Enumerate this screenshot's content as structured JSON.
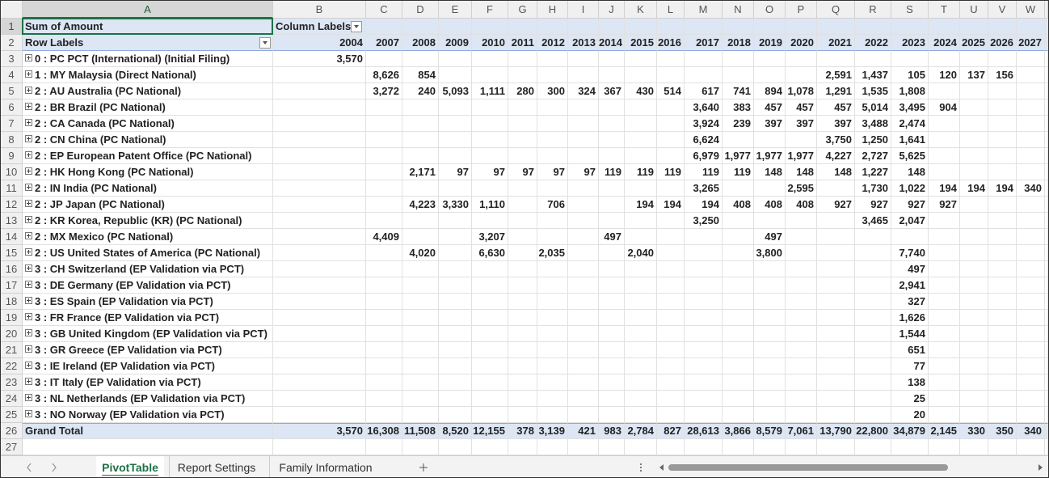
{
  "headers": {
    "column_letters": [
      "A",
      "B",
      "C",
      "D",
      "E",
      "F",
      "G",
      "H",
      "I",
      "J",
      "K",
      "L",
      "M",
      "N",
      "O",
      "P",
      "Q",
      "R",
      "S",
      "T",
      "U",
      "V",
      "W"
    ],
    "row_numbers": [
      1,
      2,
      3,
      4,
      5,
      6,
      7,
      8,
      9,
      10,
      11,
      12,
      13,
      14,
      15,
      16,
      17,
      18,
      19,
      20,
      21,
      22,
      23,
      24,
      25,
      26,
      27
    ]
  },
  "pivot": {
    "data_field": "Sum of Amount",
    "column_labels_caption": "Column Labels",
    "row_labels_caption": "Row Labels",
    "years": [
      2004,
      2007,
      2008,
      2009,
      2010,
      2011,
      2012,
      2013,
      2014,
      2015,
      2016,
      2017,
      2018,
      2019,
      2020,
      2021,
      2022,
      2023,
      2024,
      2025,
      2026,
      2027
    ],
    "rows": [
      {
        "label": "0 : PC PCT (International) (Initial Filing)",
        "values": [
          "3,570",
          null,
          null,
          null,
          null,
          null,
          null,
          null,
          null,
          null,
          null,
          null,
          null,
          null,
          null,
          null,
          null,
          null,
          null,
          null,
          null,
          null
        ]
      },
      {
        "label": "1 : MY Malaysia (Direct National)",
        "values": [
          null,
          "8,626",
          "854",
          null,
          null,
          null,
          null,
          null,
          null,
          null,
          null,
          null,
          null,
          null,
          null,
          "2,591",
          "1,437",
          "105",
          "120",
          "137",
          "156",
          null
        ]
      },
      {
        "label": "2 : AU Australia (PC National)",
        "values": [
          null,
          "3,272",
          "240",
          "5,093",
          "1,111",
          "280",
          "300",
          "324",
          "367",
          "430",
          "514",
          "617",
          "741",
          "894",
          "1,078",
          "1,291",
          "1,535",
          "1,808",
          null,
          null,
          null,
          null
        ]
      },
      {
        "label": "2 : BR Brazil (PC National)",
        "values": [
          null,
          null,
          null,
          null,
          null,
          null,
          null,
          null,
          null,
          null,
          null,
          "3,640",
          "383",
          "457",
          "457",
          "457",
          "5,014",
          "3,495",
          "904",
          null,
          null,
          null
        ]
      },
      {
        "label": "2 : CA Canada (PC National)",
        "values": [
          null,
          null,
          null,
          null,
          null,
          null,
          null,
          null,
          null,
          null,
          null,
          "3,924",
          "239",
          "397",
          "397",
          "397",
          "3,488",
          "2,474",
          null,
          null,
          null,
          null
        ]
      },
      {
        "label": "2 : CN China (PC National)",
        "values": [
          null,
          null,
          null,
          null,
          null,
          null,
          null,
          null,
          null,
          null,
          null,
          "6,624",
          null,
          null,
          null,
          "3,750",
          "1,250",
          "1,641",
          null,
          null,
          null,
          null
        ]
      },
      {
        "label": "2 : EP European Patent Office (PC National)",
        "values": [
          null,
          null,
          null,
          null,
          null,
          null,
          null,
          null,
          null,
          null,
          null,
          "6,979",
          "1,977",
          "1,977",
          "1,977",
          "4,227",
          "2,727",
          "5,625",
          null,
          null,
          null,
          null
        ]
      },
      {
        "label": "2 : HK Hong Kong (PC National)",
        "values": [
          null,
          null,
          "2,171",
          "97",
          "97",
          "97",
          "97",
          "97",
          "119",
          "119",
          "119",
          "119",
          "119",
          "148",
          "148",
          "148",
          "1,227",
          "148",
          null,
          null,
          null,
          null
        ]
      },
      {
        "label": "2 : IN India (PC National)",
        "values": [
          null,
          null,
          null,
          null,
          null,
          null,
          null,
          null,
          null,
          null,
          null,
          "3,265",
          null,
          null,
          "2,595",
          null,
          "1,730",
          "1,022",
          "194",
          "194",
          "194",
          "340"
        ]
      },
      {
        "label": "2 : JP Japan (PC National)",
        "values": [
          null,
          null,
          "4,223",
          "3,330",
          "1,110",
          null,
          "706",
          null,
          null,
          "194",
          "194",
          "194",
          "408",
          "408",
          "408",
          "927",
          "927",
          "927",
          "927",
          null,
          null,
          null
        ]
      },
      {
        "label": "2 : KR Korea, Republic (KR) (PC National)",
        "values": [
          null,
          null,
          null,
          null,
          null,
          null,
          null,
          null,
          null,
          null,
          null,
          "3,250",
          null,
          null,
          null,
          null,
          "3,465",
          "2,047",
          null,
          null,
          null,
          null
        ]
      },
      {
        "label": "2 : MX Mexico (PC National)",
        "values": [
          null,
          "4,409",
          null,
          null,
          "3,207",
          null,
          null,
          null,
          "497",
          null,
          null,
          null,
          null,
          "497",
          null,
          null,
          null,
          null,
          null,
          null,
          null,
          null
        ]
      },
      {
        "label": "2 : US United States of America (PC National)",
        "values": [
          null,
          null,
          "4,020",
          null,
          "6,630",
          null,
          "2,035",
          null,
          null,
          "2,040",
          null,
          null,
          null,
          "3,800",
          null,
          null,
          null,
          "7,740",
          null,
          null,
          null,
          null
        ]
      },
      {
        "label": "3 : CH Switzerland (EP Validation via PCT)",
        "values": [
          null,
          null,
          null,
          null,
          null,
          null,
          null,
          null,
          null,
          null,
          null,
          null,
          null,
          null,
          null,
          null,
          null,
          "497",
          null,
          null,
          null,
          null
        ]
      },
      {
        "label": "3 : DE Germany (EP Validation via PCT)",
        "values": [
          null,
          null,
          null,
          null,
          null,
          null,
          null,
          null,
          null,
          null,
          null,
          null,
          null,
          null,
          null,
          null,
          null,
          "2,941",
          null,
          null,
          null,
          null
        ]
      },
      {
        "label": "3 : ES Spain (EP Validation via PCT)",
        "values": [
          null,
          null,
          null,
          null,
          null,
          null,
          null,
          null,
          null,
          null,
          null,
          null,
          null,
          null,
          null,
          null,
          null,
          "327",
          null,
          null,
          null,
          null
        ]
      },
      {
        "label": "3 : FR France (EP Validation via PCT)",
        "values": [
          null,
          null,
          null,
          null,
          null,
          null,
          null,
          null,
          null,
          null,
          null,
          null,
          null,
          null,
          null,
          null,
          null,
          "1,626",
          null,
          null,
          null,
          null
        ]
      },
      {
        "label": "3 : GB United Kingdom (EP Validation via PCT)",
        "values": [
          null,
          null,
          null,
          null,
          null,
          null,
          null,
          null,
          null,
          null,
          null,
          null,
          null,
          null,
          null,
          null,
          null,
          "1,544",
          null,
          null,
          null,
          null
        ]
      },
      {
        "label": "3 : GR Greece (EP Validation via PCT)",
        "values": [
          null,
          null,
          null,
          null,
          null,
          null,
          null,
          null,
          null,
          null,
          null,
          null,
          null,
          null,
          null,
          null,
          null,
          "651",
          null,
          null,
          null,
          null
        ]
      },
      {
        "label": "3 : IE Ireland (EP Validation via PCT)",
        "values": [
          null,
          null,
          null,
          null,
          null,
          null,
          null,
          null,
          null,
          null,
          null,
          null,
          null,
          null,
          null,
          null,
          null,
          "77",
          null,
          null,
          null,
          null
        ]
      },
      {
        "label": "3 : IT Italy (EP Validation via PCT)",
        "values": [
          null,
          null,
          null,
          null,
          null,
          null,
          null,
          null,
          null,
          null,
          null,
          null,
          null,
          null,
          null,
          null,
          null,
          "138",
          null,
          null,
          null,
          null
        ]
      },
      {
        "label": "3 : NL Netherlands (EP Validation via PCT)",
        "values": [
          null,
          null,
          null,
          null,
          null,
          null,
          null,
          null,
          null,
          null,
          null,
          null,
          null,
          null,
          null,
          null,
          null,
          "25",
          null,
          null,
          null,
          null
        ]
      },
      {
        "label": "3 : NO Norway (EP Validation via PCT)",
        "values": [
          null,
          null,
          null,
          null,
          null,
          null,
          null,
          null,
          null,
          null,
          null,
          null,
          null,
          null,
          null,
          null,
          null,
          "20",
          null,
          null,
          null,
          null
        ]
      }
    ],
    "grand_total": {
      "label": "Grand Total",
      "values": [
        "3,570",
        "16,308",
        "11,508",
        "8,520",
        "12,155",
        "378",
        "3,139",
        "421",
        "983",
        "2,784",
        "827",
        "28,613",
        "3,866",
        "8,579",
        "7,061",
        "13,790",
        "22,800",
        "34,879",
        "2,145",
        "330",
        "350",
        "340"
      ]
    }
  },
  "tabs": [
    "PivotTable",
    "Report Settings",
    "Family Information"
  ]
}
